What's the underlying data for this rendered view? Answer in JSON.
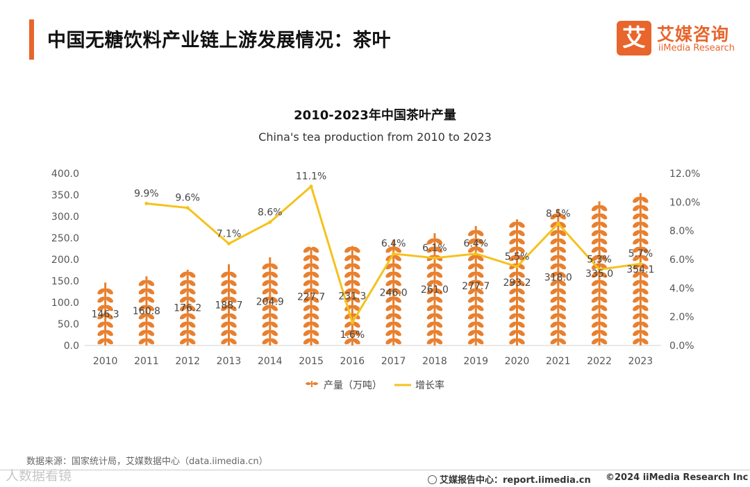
{
  "header": {
    "title": "中国无糖饮料产业链上游发展情况：茶叶"
  },
  "logo": {
    "mark": "艾",
    "cn": "艾媒咨询",
    "en": "iiMedia Research"
  },
  "colors": {
    "accent": "#e8652c",
    "bar": "#e8802f",
    "line": "#f5c21b",
    "axis": "#d0d0d0",
    "text": "#555555"
  },
  "chart_data": {
    "type": "bar",
    "title": "2010-2023年中国茶叶产量",
    "subtitle": "China's tea production from 2010 to 2023",
    "categories": [
      "2010",
      "2011",
      "2012",
      "2013",
      "2014",
      "2015",
      "2016",
      "2017",
      "2018",
      "2019",
      "2020",
      "2021",
      "2022",
      "2023"
    ],
    "series": [
      {
        "name": "产量（万吨）",
        "type": "bar",
        "axis": "left",
        "values": [
          146.3,
          160.8,
          176.2,
          188.7,
          204.9,
          227.7,
          231.3,
          246.0,
          261.0,
          277.7,
          293.2,
          318.0,
          335.0,
          354.1
        ],
        "labels": [
          "146.3",
          "160.8",
          "176.2",
          "188.7",
          "204.9",
          "227.7",
          "231.3",
          "246.0",
          "261.0",
          "277.7",
          "293.2",
          "318.0",
          "335.0",
          "354.1"
        ]
      },
      {
        "name": "增长率",
        "type": "line",
        "axis": "right",
        "values": [
          null,
          9.9,
          9.6,
          7.1,
          8.6,
          11.1,
          1.6,
          6.4,
          6.1,
          6.4,
          5.5,
          8.5,
          5.3,
          5.7
        ],
        "labels": [
          "",
          "9.9%",
          "9.6%",
          "7.1%",
          "8.6%",
          "11.1%",
          "1.6%",
          "6.4%",
          "6.1%",
          "6.4%",
          "5.5%",
          "8.5%",
          "5.3%",
          "5.7%"
        ]
      }
    ],
    "y_left": {
      "min": 0,
      "max": 400,
      "ticks": [
        "0.0",
        "50.0",
        "100.0",
        "150.0",
        "200.0",
        "250.0",
        "300.0",
        "350.0",
        "400.0"
      ]
    },
    "y_right": {
      "min": 0,
      "max": 12,
      "ticks": [
        "0.0%",
        "2.0%",
        "4.0%",
        "6.0%",
        "8.0%",
        "10.0%",
        "12.0%"
      ]
    },
    "legend_position": "bottom-center"
  },
  "footer": {
    "source": "数据来源：国家统计局，艾媒数据中心（data.iimedia.cn）",
    "site": "艾媒报告中心：report.iimedia.cn",
    "copyright": "©2024  iiMedia Research  Inc",
    "watermark": "人数据看镜"
  }
}
